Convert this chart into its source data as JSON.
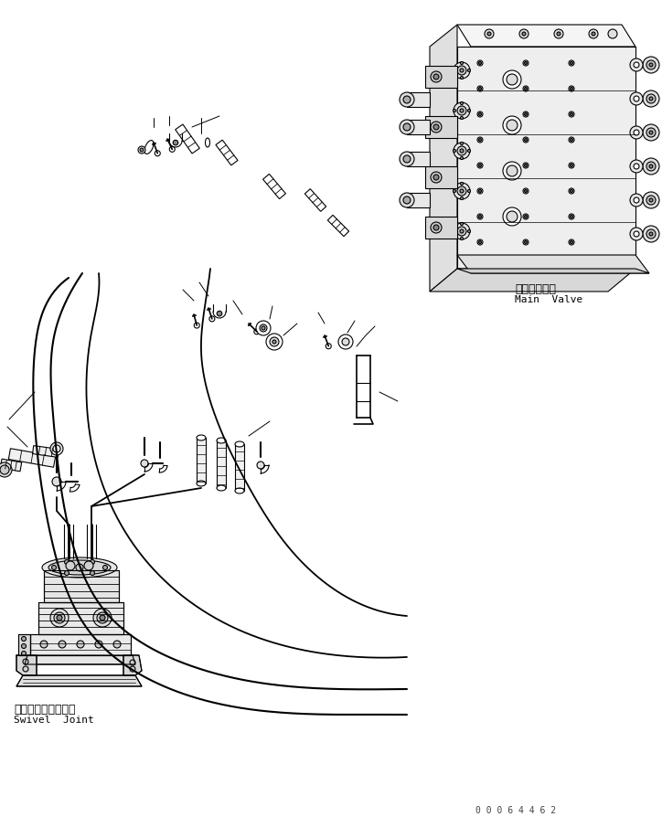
{
  "background_color": "#ffffff",
  "line_color": "#000000",
  "fig_width": 7.24,
  "fig_height": 8.95,
  "dpi": 100,
  "label_main_valve_jp": "メインバルブ",
  "label_main_valve_en": "Main  Valve",
  "label_swivel_jp": "スイベルジョイント",
  "label_swivel_en": "Swivel  Joint",
  "serial_number": "0 0 0 6 4 4 6 2",
  "font_size_label": 8,
  "font_size_serial": 7
}
